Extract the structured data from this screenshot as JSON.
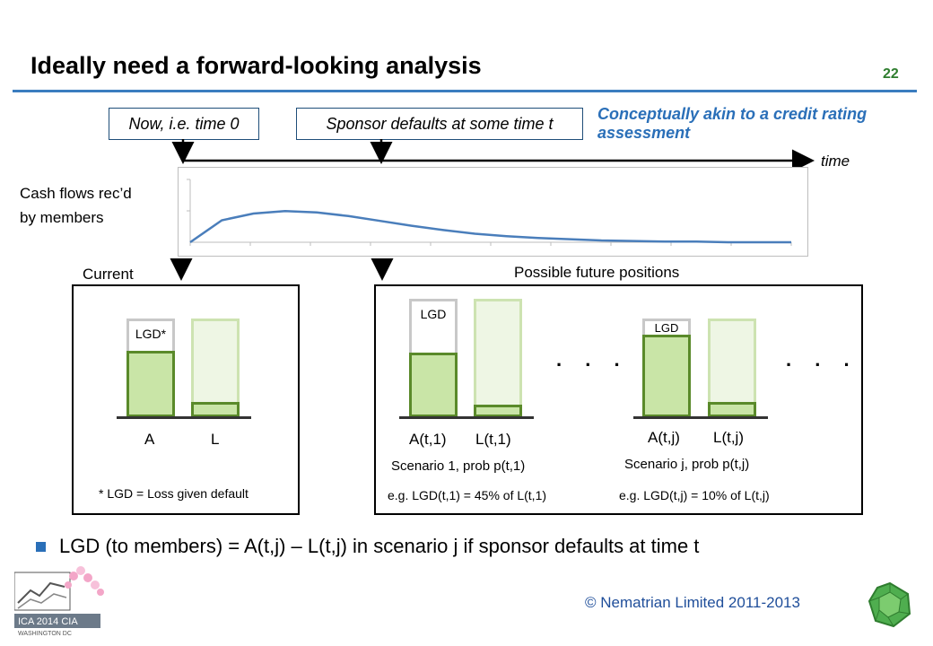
{
  "title": "Ideally need a forward-looking analysis",
  "page_number": "22",
  "timeline": {
    "now_label": "Now, i.e. time 0",
    "default_label": "Sponsor defaults at some time t",
    "note": "Conceptually akin to a credit rating assessment",
    "axis_label": "time"
  },
  "cashflow": {
    "label_line1": "Cash flows rec’d",
    "label_line2": "by members",
    "curve": [
      0,
      0.36,
      0.47,
      0.51,
      0.49,
      0.43,
      0.35,
      0.27,
      0.2,
      0.14,
      0.1,
      0.07,
      0.05,
      0.03,
      0.02,
      0.01,
      0.01,
      0.0,
      0.0,
      0.0
    ],
    "ylim": [
      0,
      1
    ]
  },
  "current": {
    "heading": "Current",
    "lgd_label": "LGD*",
    "asset_label": "A",
    "liability_label": "L",
    "footnote": "* LGD = Loss given default"
  },
  "future": {
    "heading": "Possible future positions",
    "ellipsis": ". . .",
    "scenario1": {
      "lgd_label": "LGD",
      "asset_label": "A(t,1)",
      "liability_label": "L(t,1)",
      "caption": "Scenario 1, prob p(t,1)",
      "example": "e.g. LGD(t,1)  = 45% of L(t,1)"
    },
    "scenarioj": {
      "lgd_label": "LGD",
      "asset_label": "A(t,j)",
      "liability_label": "L(t,j)",
      "caption": "Scenario j, prob p(t,j)",
      "example": "e.g. LGD(t,j) = 10% of L(t,j)"
    }
  },
  "bullet": "LGD (to members) = A(t,j) – L(t,j) in scenario j if sponsor defaults at time t",
  "footer": {
    "copyright": "© Nematrian Limited 2011-2013",
    "conf_logo_text": "ICA 2014 CIA WASHINGTON DC"
  },
  "colors": {
    "accent_blue": "#2a6fb8",
    "asset_green": "#5a8a2a",
    "asset_fill": "#c9e5a7"
  }
}
